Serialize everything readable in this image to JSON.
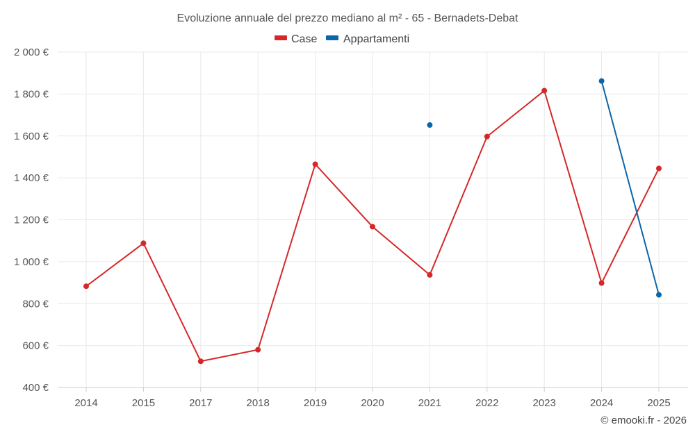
{
  "chart_data": {
    "type": "line",
    "title": "Evoluzione annuale del prezzo mediano al m² - 65 - Bernadets-Debat",
    "categories": [
      "2014",
      "2015",
      "2017",
      "2018",
      "2019",
      "2020",
      "2021",
      "2022",
      "2023",
      "2024",
      "2025"
    ],
    "series": [
      {
        "name": "Case",
        "color": "#d62728",
        "values": [
          883,
          1088,
          525,
          580,
          1465,
          1167,
          937,
          1597,
          1816,
          898,
          1445
        ]
      },
      {
        "name": "Appartamenti",
        "color": "#0a66a8",
        "values": [
          null,
          null,
          null,
          null,
          null,
          null,
          1652,
          null,
          null,
          1862,
          842
        ]
      }
    ],
    "ylim": [
      400,
      2000
    ],
    "yticks": [
      {
        "value": 2000,
        "label": "2 000 €"
      },
      {
        "value": 1800,
        "label": "1 800 €"
      },
      {
        "value": 1600,
        "label": "1 600 €"
      },
      {
        "value": 1400,
        "label": "1 400 €"
      },
      {
        "value": 1200,
        "label": "1 200 €"
      },
      {
        "value": 1000,
        "label": "1 000 €"
      },
      {
        "value": 800,
        "label": "800 €"
      },
      {
        "value": 600,
        "label": "600 €"
      },
      {
        "value": 400,
        "label": "400 €"
      }
    ],
    "xlabel": "",
    "ylabel": "",
    "grid": true,
    "legend_position": "top-center"
  },
  "credit": "© emooki.fr - 2026"
}
